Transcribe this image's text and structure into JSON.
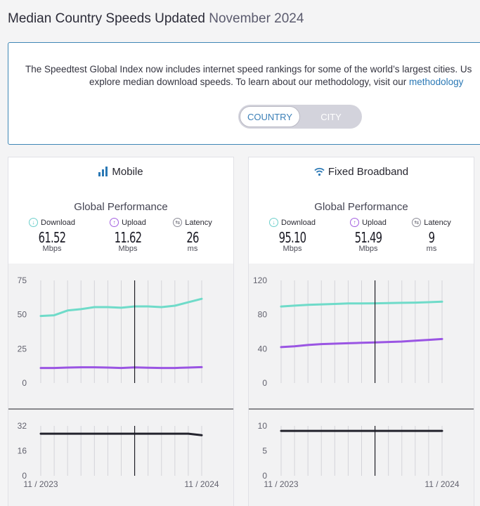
{
  "header": {
    "title": "Median Country Speeds Updated",
    "updated": "November 2024"
  },
  "intro": {
    "line1": "The Speedtest Global Index now includes internet speed rankings for some of the world’s largest cities. Us",
    "line2_prefix": "explore median download speeds. To learn about our methodology, visit our ",
    "line2_link": "methodology"
  },
  "toggle": {
    "country": "COUNTRY",
    "city": "CITY",
    "selected": "COUNTRY"
  },
  "colors": {
    "download": "#6fdbc9",
    "upload": "#9a55e3",
    "latency": "#23232d",
    "accent": "#2a78b5"
  },
  "cards": [
    {
      "title": "Mobile",
      "icon": "signal-bars-icon",
      "performance_title": "Global Performance",
      "metrics": {
        "download": {
          "label": "Download",
          "value": "61.52",
          "unit": "Mbps"
        },
        "upload": {
          "label": "Upload",
          "value": "11.62",
          "unit": "Mbps"
        },
        "latency": {
          "label": "Latency",
          "value": "26",
          "unit": "ms"
        }
      }
    },
    {
      "title": "Fixed Broadband",
      "icon": "wifi-icon",
      "performance_title": "Global Performance",
      "metrics": {
        "download": {
          "label": "Download",
          "value": "95.10",
          "unit": "Mbps"
        },
        "upload": {
          "label": "Upload",
          "value": "51.49",
          "unit": "Mbps"
        },
        "latency": {
          "label": "Latency",
          "value": "9",
          "unit": "ms"
        }
      }
    }
  ],
  "chart_data": [
    {
      "type": "line",
      "x": [
        "11 / 2023",
        "12 / 2023",
        "1 / 2024",
        "2 / 2024",
        "3 / 2024",
        "4 / 2024",
        "5 / 2024",
        "6 / 2024",
        "7 / 2024",
        "8 / 2024",
        "9 / 2024",
        "10 / 2024",
        "11 / 2024"
      ],
      "x_tick_labels": [
        "11 / 2023",
        "11 / 2024"
      ],
      "ylim": [
        0,
        75
      ],
      "yticks": [
        0,
        25,
        50,
        75
      ],
      "series": [
        {
          "name": "Download",
          "values": [
            49.0,
            49.5,
            53.0,
            54.0,
            55.5,
            55.5,
            55.0,
            56.0,
            56.0,
            55.5,
            56.5,
            59.0,
            61.52
          ]
        },
        {
          "name": "Upload",
          "values": [
            11.0,
            11.0,
            11.3,
            11.5,
            11.5,
            11.3,
            11.0,
            11.4,
            11.2,
            11.0,
            11.0,
            11.3,
            11.62
          ]
        }
      ],
      "marker_x": "6 / 2024"
    },
    {
      "type": "line",
      "x": [
        "11 / 2023",
        "12 / 2023",
        "1 / 2024",
        "2 / 2024",
        "3 / 2024",
        "4 / 2024",
        "5 / 2024",
        "6 / 2024",
        "7 / 2024",
        "8 / 2024",
        "9 / 2024",
        "10 / 2024",
        "11 / 2024"
      ],
      "x_tick_labels": [
        "11 / 2023",
        "11 / 2024"
      ],
      "ylim": [
        0,
        32
      ],
      "yticks": [
        0,
        16,
        32
      ],
      "series": [
        {
          "name": "Latency",
          "values": [
            27,
            27,
            27,
            27,
            27,
            27,
            27,
            27,
            27,
            27,
            27,
            27,
            26
          ]
        }
      ],
      "marker_x": "6 / 2024"
    },
    {
      "type": "line",
      "x": [
        "11 / 2023",
        "12 / 2023",
        "1 / 2024",
        "2 / 2024",
        "3 / 2024",
        "4 / 2024",
        "5 / 2024",
        "6 / 2024",
        "7 / 2024",
        "8 / 2024",
        "9 / 2024",
        "10 / 2024",
        "11 / 2024"
      ],
      "x_tick_labels": [
        "11 / 2023",
        "11 / 2024"
      ],
      "ylim": [
        0,
        120
      ],
      "yticks": [
        0,
        40,
        80,
        120
      ],
      "series": [
        {
          "name": "Download",
          "values": [
            89.5,
            90.5,
            91.5,
            92.0,
            92.5,
            93.0,
            93.0,
            93.2,
            93.5,
            93.8,
            94.0,
            94.5,
            95.1
          ]
        },
        {
          "name": "Upload",
          "values": [
            42.0,
            43.0,
            44.5,
            45.5,
            46.0,
            46.5,
            47.0,
            47.5,
            48.0,
            48.5,
            49.5,
            50.5,
            51.49
          ]
        }
      ],
      "marker_x": "6 / 2024"
    },
    {
      "type": "line",
      "x": [
        "11 / 2023",
        "12 / 2023",
        "1 / 2024",
        "2 / 2024",
        "3 / 2024",
        "4 / 2024",
        "5 / 2024",
        "6 / 2024",
        "7 / 2024",
        "8 / 2024",
        "9 / 2024",
        "10 / 2024",
        "11 / 2024"
      ],
      "x_tick_labels": [
        "11 / 2023",
        "11 / 2024"
      ],
      "ylim": [
        0,
        10
      ],
      "yticks": [
        0,
        5,
        10
      ],
      "series": [
        {
          "name": "Latency",
          "values": [
            9,
            9,
            9,
            9,
            9,
            9,
            9,
            9,
            9,
            9,
            9,
            9,
            9
          ]
        }
      ],
      "marker_x": "6 / 2024"
    }
  ]
}
